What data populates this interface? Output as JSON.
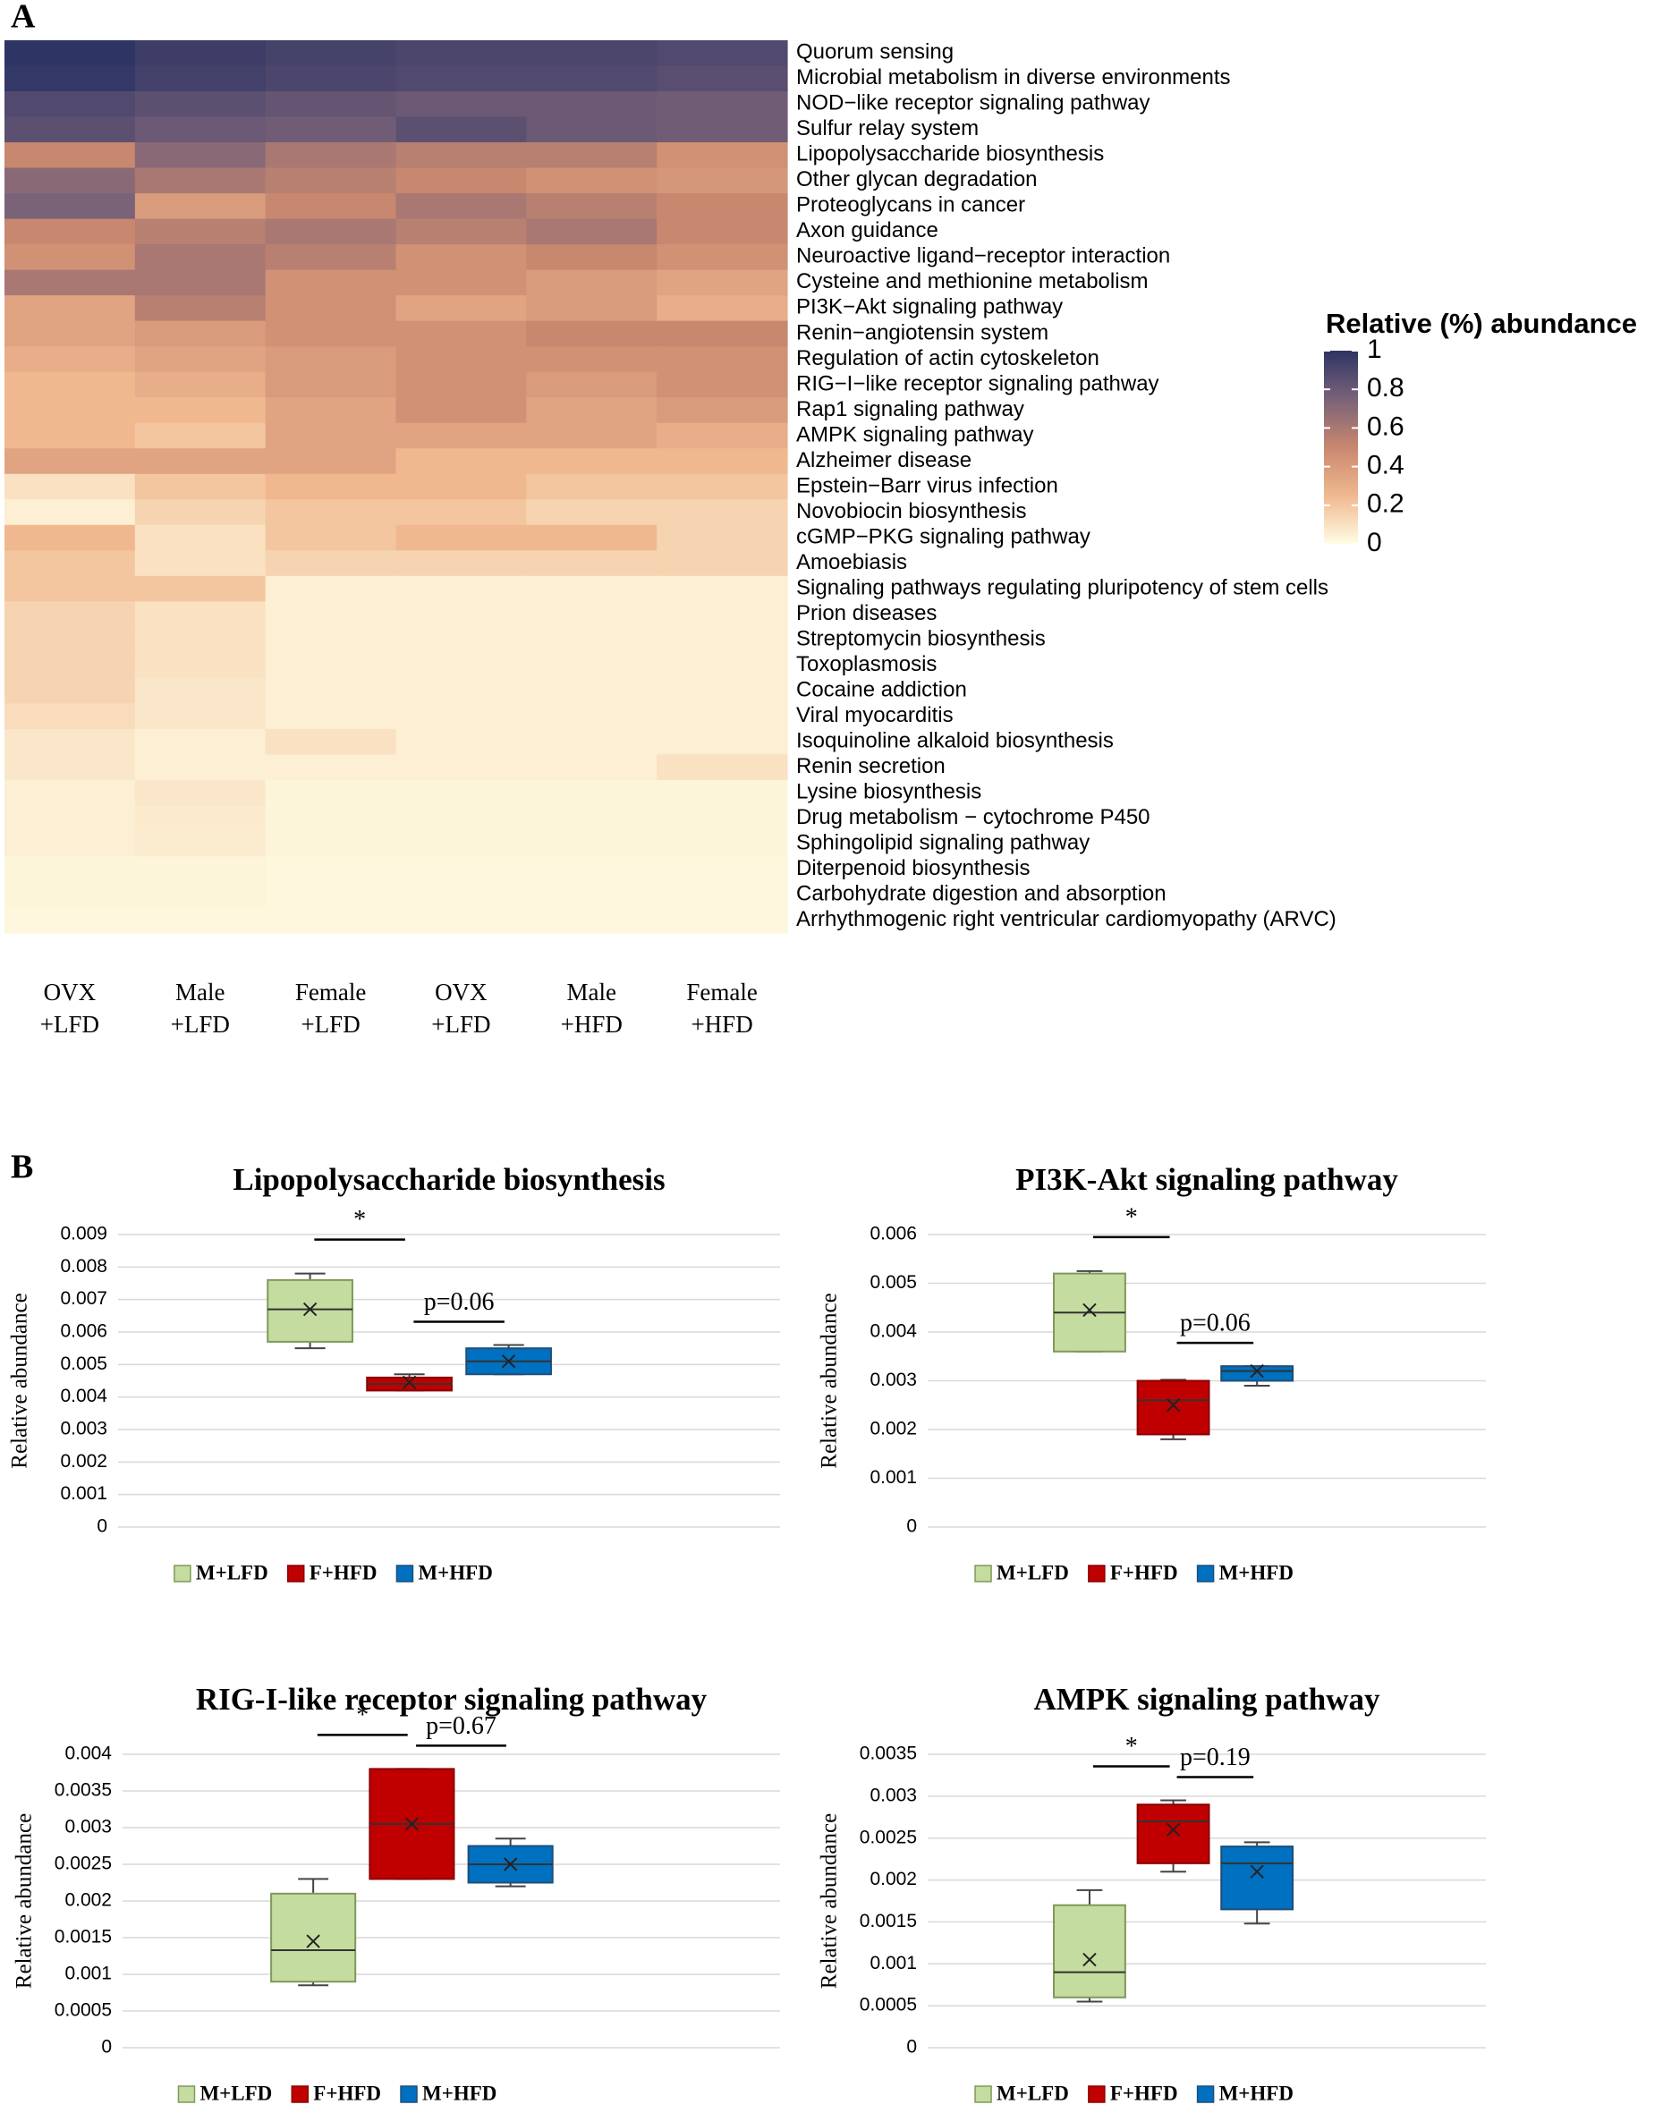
{
  "chart_data": [
    {
      "type": "heatmap",
      "panel": "A",
      "rows": [
        "Quorum sensing",
        "Microbial metabolism in diverse environments",
        "NOD−like receptor signaling pathway",
        "Sulfur relay system",
        "Lipopolysaccharide biosynthesis",
        "Other glycan degradation",
        "Proteoglycans in cancer",
        "Axon guidance",
        "Neuroactive ligand−receptor interaction",
        "Cysteine and methionine metabolism",
        "PI3K−Akt signaling pathway",
        "Renin−angiotensin system",
        "Regulation of actin cytoskeleton",
        "RIG−I−like receptor signaling pathway",
        "Rap1 signaling pathway",
        "AMPK signaling pathway",
        "Alzheimer disease",
        "Epstein−Barr virus infection",
        "Novobiocin biosynthesis",
        "cGMP−PKG signaling pathway",
        "Amoebiasis",
        "Signaling pathways regulating pluripotency of stem cells",
        "Prion diseases",
        "Streptomycin biosynthesis",
        "Toxoplasmosis",
        "Cocaine addiction",
        "Viral myocarditis",
        "Isoquinoline alkaloid biosynthesis",
        "Renin secretion",
        "Lysine biosynthesis",
        "Drug metabolism − cytochrome P450",
        "Sphingolipid signaling pathway",
        "Diterpenoid biosynthesis",
        "Carbohydrate digestion and absorption",
        "Arrhythmogenic right ventricular cardiomyopathy (ARVC)"
      ],
      "columns": [
        [
          "OVX",
          "+LFD"
        ],
        [
          "Male",
          "+LFD"
        ],
        [
          "Female",
          "+LFD"
        ],
        [
          "OVX",
          "+LFD"
        ],
        [
          "Male",
          "+HFD"
        ],
        [
          "Female",
          "+HFD"
        ]
      ],
      "values": [
        [
          1,
          0.95,
          0.92,
          0.9,
          0.9,
          0.88
        ],
        [
          0.98,
          0.93,
          0.9,
          0.88,
          0.88,
          0.86
        ],
        [
          0.88,
          0.85,
          0.82,
          0.8,
          0.8,
          0.78
        ],
        [
          0.85,
          0.8,
          0.78,
          0.85,
          0.8,
          0.78
        ],
        [
          0.5,
          0.7,
          0.6,
          0.55,
          0.55,
          0.45
        ],
        [
          0.7,
          0.6,
          0.55,
          0.5,
          0.45,
          0.42
        ],
        [
          0.75,
          0.4,
          0.5,
          0.6,
          0.55,
          0.5
        ],
        [
          0.5,
          0.55,
          0.6,
          0.55,
          0.6,
          0.5
        ],
        [
          0.45,
          0.6,
          0.55,
          0.45,
          0.5,
          0.45
        ],
        [
          0.6,
          0.6,
          0.45,
          0.45,
          0.4,
          0.35
        ],
        [
          0.35,
          0.55,
          0.45,
          0.35,
          0.4,
          0.3
        ],
        [
          0.35,
          0.4,
          0.45,
          0.45,
          0.5,
          0.5
        ],
        [
          0.3,
          0.35,
          0.4,
          0.45,
          0.45,
          0.45
        ],
        [
          0.25,
          0.3,
          0.4,
          0.45,
          0.4,
          0.45
        ],
        [
          0.25,
          0.25,
          0.35,
          0.45,
          0.35,
          0.4
        ],
        [
          0.25,
          0.2,
          0.35,
          0.35,
          0.35,
          0.3
        ],
        [
          0.35,
          0.35,
          0.35,
          0.25,
          0.25,
          0.25
        ],
        [
          0.1,
          0.2,
          0.25,
          0.25,
          0.2,
          0.2
        ],
        [
          0.05,
          0.15,
          0.2,
          0.2,
          0.15,
          0.15
        ],
        [
          0.25,
          0.1,
          0.2,
          0.25,
          0.25,
          0.15
        ],
        [
          0.2,
          0.1,
          0.15,
          0.15,
          0.15,
          0.15
        ],
        [
          0.2,
          0.2,
          0.05,
          0.05,
          0.05,
          0.05
        ],
        [
          0.15,
          0.1,
          0.05,
          0.05,
          0.05,
          0.05
        ],
        [
          0.15,
          0.1,
          0.05,
          0.05,
          0.05,
          0.05
        ],
        [
          0.15,
          0.1,
          0.05,
          0.05,
          0.05,
          0.05
        ],
        [
          0.15,
          0.08,
          0.05,
          0.05,
          0.05,
          0.05
        ],
        [
          0.12,
          0.08,
          0.05,
          0.05,
          0.05,
          0.05
        ],
        [
          0.08,
          0.05,
          0.1,
          0.05,
          0.05,
          0.05
        ],
        [
          0.08,
          0.05,
          0.05,
          0.05,
          0.05,
          0.1
        ],
        [
          0.05,
          0.08,
          0.03,
          0.03,
          0.03,
          0.03
        ],
        [
          0.05,
          0.07,
          0.03,
          0.03,
          0.03,
          0.03
        ],
        [
          0.05,
          0.06,
          0.03,
          0.03,
          0.03,
          0.03
        ],
        [
          0.03,
          0.03,
          0.02,
          0.02,
          0.02,
          0.02
        ],
        [
          0.03,
          0.03,
          0.02,
          0.02,
          0.02,
          0.02
        ],
        [
          0.02,
          0.02,
          0.02,
          0.02,
          0.02,
          0.02
        ]
      ],
      "colorbar_title": "Relative (%) abundance",
      "clim": [
        0,
        1
      ],
      "colorbar_ticks": [
        0,
        0.2,
        0.4,
        0.6,
        0.8,
        1
      ],
      "colorscale": [
        [
          0,
          "#fffde4"
        ],
        [
          0.25,
          "#f0b88f"
        ],
        [
          0.5,
          "#c8876f"
        ],
        [
          0.75,
          "#7a6279"
        ],
        [
          1,
          "#2e3464"
        ]
      ]
    },
    {
      "type": "box",
      "panel": "B",
      "title": "Lipopolysaccharide biosynthesis",
      "ylabel": "Relative abundance",
      "ylim": [
        0,
        0.009
      ],
      "yticks": [
        0,
        0.001,
        0.002,
        0.003,
        0.004,
        0.005,
        0.006,
        0.007,
        0.008,
        0.009
      ],
      "grid": true,
      "annotations": [
        "*",
        "p=0.06"
      ],
      "series": [
        {
          "name": "M+LFD",
          "color": "#c5dca0",
          "edge": "#7f9a5a",
          "min": 0.0055,
          "q1": 0.0057,
          "median": 0.0067,
          "q3": 0.0076,
          "max": 0.0078,
          "mean": 0.0067
        },
        {
          "name": "F+HFD",
          "color": "#c00000",
          "edge": "#8a0000",
          "min": 0.0042,
          "q1": 0.0042,
          "median": 0.0044,
          "q3": 0.0046,
          "max": 0.0047,
          "mean": 0.00445
        },
        {
          "name": "M+HFD",
          "color": "#0070c0",
          "edge": "#1f4e79",
          "min": 0.0047,
          "q1": 0.0047,
          "median": 0.0051,
          "q3": 0.0055,
          "max": 0.0056,
          "mean": 0.0051
        }
      ]
    },
    {
      "type": "box",
      "title": "PI3K-Akt signaling pathway",
      "ylabel": "Relative abundance",
      "ylim": [
        0,
        0.006
      ],
      "yticks": [
        0,
        0.001,
        0.002,
        0.003,
        0.004,
        0.005,
        0.006
      ],
      "grid": true,
      "annotations": [
        "*",
        "p=0.06"
      ],
      "series": [
        {
          "name": "M+LFD",
          "color": "#c5dca0",
          "edge": "#7f9a5a",
          "min": 0.0036,
          "q1": 0.0036,
          "median": 0.0044,
          "q3": 0.0052,
          "max": 0.00525,
          "mean": 0.00445
        },
        {
          "name": "F+HFD",
          "color": "#c00000",
          "edge": "#8a0000",
          "min": 0.0018,
          "q1": 0.0019,
          "median": 0.0026,
          "q3": 0.003,
          "max": 0.00302,
          "mean": 0.0025
        },
        {
          "name": "M+HFD",
          "color": "#0070c0",
          "edge": "#1f4e79",
          "min": 0.0029,
          "q1": 0.003,
          "median": 0.0032,
          "q3": 0.0033,
          "max": 0.0033,
          "mean": 0.0032
        }
      ]
    },
    {
      "type": "box",
      "title": "RIG-I-like receptor signaling pathway",
      "ylabel": "Relative abundance",
      "ylim": [
        0,
        0.004
      ],
      "yticks": [
        0,
        0.0005,
        0.001,
        0.0015,
        0.002,
        0.0025,
        0.003,
        0.0035,
        0.004
      ],
      "grid": true,
      "annotations": [
        "*",
        "p=0.67"
      ],
      "series": [
        {
          "name": "M+LFD",
          "color": "#c5dca0",
          "edge": "#7f9a5a",
          "min": 0.00085,
          "q1": 0.0009,
          "median": 0.00133,
          "q3": 0.0021,
          "max": 0.0023,
          "mean": 0.00145
        },
        {
          "name": "F+HFD",
          "color": "#c00000",
          "edge": "#8a0000",
          "min": 0.0023,
          "q1": 0.0023,
          "median": 0.00305,
          "q3": 0.0038,
          "max": 0.0038,
          "mean": 0.00305
        },
        {
          "name": "M+HFD",
          "color": "#0070c0",
          "edge": "#1f4e79",
          "min": 0.0022,
          "q1": 0.00225,
          "median": 0.0025,
          "q3": 0.00275,
          "max": 0.00285,
          "mean": 0.0025
        }
      ]
    },
    {
      "type": "box",
      "title": "AMPK signaling pathway",
      "ylabel": "Relative abundance",
      "ylim": [
        0,
        0.0035
      ],
      "yticks": [
        0,
        0.0005,
        0.001,
        0.0015,
        0.002,
        0.0025,
        0.003,
        0.0035
      ],
      "grid": true,
      "annotations": [
        "*",
        "p=0.19"
      ],
      "series": [
        {
          "name": "M+LFD",
          "color": "#c5dca0",
          "edge": "#7f9a5a",
          "min": 0.00055,
          "q1": 0.0006,
          "median": 0.0009,
          "q3": 0.0017,
          "max": 0.00188,
          "mean": 0.00105
        },
        {
          "name": "F+HFD",
          "color": "#c00000",
          "edge": "#8a0000",
          "min": 0.0021,
          "q1": 0.0022,
          "median": 0.0027,
          "q3": 0.0029,
          "max": 0.00295,
          "mean": 0.0026
        },
        {
          "name": "M+HFD",
          "color": "#0070c0",
          "edge": "#1f4e79",
          "min": 0.00148,
          "q1": 0.00165,
          "median": 0.0022,
          "q3": 0.0024,
          "max": 0.00245,
          "mean": 0.0021
        }
      ]
    }
  ]
}
